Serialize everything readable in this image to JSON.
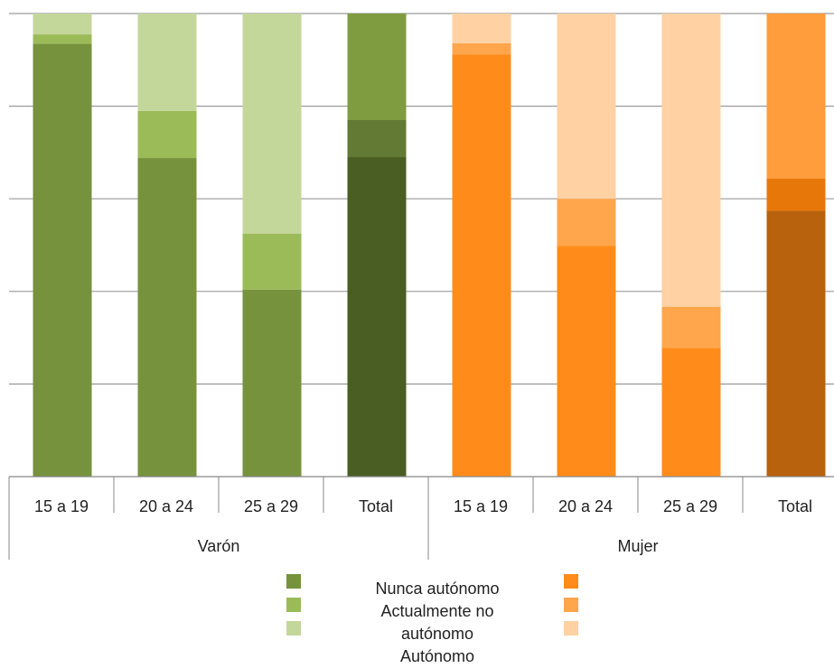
{
  "chart_data": {
    "type": "bar",
    "stacked": true,
    "normalized_100_percent": true,
    "groups": [
      {
        "name": "Varón",
        "categories": [
          "15 a 19",
          "20 a 24",
          "25 a 29",
          "Total"
        ],
        "series": [
          {
            "values": [
              93.5,
              68.8,
              40.4,
              69.0
            ]
          },
          {
            "values": [
              2.0,
              10.2,
              12.1,
              8.0
            ]
          },
          {
            "values": [
              4.5,
              21.0,
              47.5,
              23.0
            ]
          }
        ],
        "colors": [
          [
            "#76923c",
            "#9bbb59",
            "#c4d79b"
          ],
          [
            "#76923c",
            "#9bbb59",
            "#c4d79b"
          ],
          [
            "#76923c",
            "#9bbb59",
            "#c4d79b"
          ],
          [
            "#4a5e23",
            "#627a33",
            "#7f9c41"
          ]
        ]
      },
      {
        "name": "Mujer",
        "categories": [
          "15 a 19",
          "20 a 24",
          "25 a 29",
          "Total"
        ],
        "series": [
          {
            "values": [
              91.2,
              49.8,
              27.8,
              57.4
            ]
          },
          {
            "values": [
              2.4,
              10.2,
              8.9,
              7.0
            ]
          },
          {
            "values": [
              6.4,
              40.0,
              63.3,
              35.6
            ]
          }
        ],
        "colors": [
          [
            "#ff8c1a",
            "#ffa64d",
            "#ffd1a3"
          ],
          [
            "#ff8c1a",
            "#ffa64d",
            "#ffd1a3"
          ],
          [
            "#ff8c1a",
            "#ffa64d",
            "#ffd1a3"
          ],
          [
            "#b8620e",
            "#e8770a",
            "#ff9c3b"
          ]
        ]
      }
    ],
    "ylim": [
      0,
      100
    ],
    "gridlines": [
      20,
      40,
      60,
      80,
      100
    ],
    "grid": true,
    "legend": {
      "placement": "bottom",
      "entries": [
        {
          "label": "Nunca autónomo",
          "color_male": "#76923c",
          "color_female": "#ff8c1a"
        },
        {
          "label": "Actualmente no autónomo",
          "color_male": "#9bbb59",
          "color_female": "#ffa64d"
        },
        {
          "label": "Autónomo",
          "color_male": "#c4d79b",
          "color_female": "#ffd1a3"
        }
      ],
      "text_lines": [
        "Nunca autónomo",
        "Actualmente no",
        "autónomo",
        "Autónomo"
      ]
    }
  }
}
